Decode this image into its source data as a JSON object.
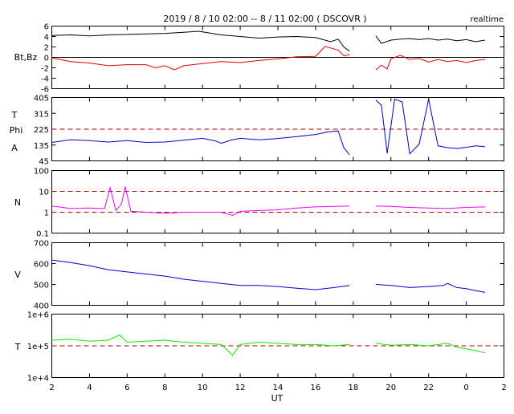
{
  "title": "2019 / 8 / 10   02:00 -- 8 / 11   02:00 ( DSCOVR )",
  "mode_label": "realtime",
  "xlabel": "UT",
  "x_tick_labels": [
    "2",
    "4",
    "6",
    "8",
    "10",
    "12",
    "14",
    "16",
    "18",
    "20",
    "22",
    "0",
    "2"
  ],
  "colors": {
    "bt": "#000000",
    "bz": "#dd0000",
    "phi": "#0000cc",
    "density": "#ee00ee",
    "speed": "#0000cc",
    "temperature": "#00ee00",
    "reference_dash": "#aa0000"
  },
  "chart_data": [
    {
      "type": "line",
      "panel": "magnetic-field",
      "ylabel": "Bt,Bz",
      "ylim": [
        -6,
        6
      ],
      "yticks": [
        "6",
        "4",
        "2",
        "0",
        "-2",
        "-4",
        "-6"
      ],
      "zero_line": 0,
      "series": [
        {
          "name": "Bt",
          "x": [
            2,
            3,
            4,
            5,
            6,
            7,
            8,
            9,
            9.8,
            10.5,
            11,
            12,
            13,
            14,
            15,
            16,
            16.4,
            16.8,
            17.2,
            17.5,
            17.8,
            19.2,
            19.5,
            20,
            20.5,
            21,
            21.5,
            22,
            22.5,
            23,
            23.5,
            24,
            24.5,
            25
          ],
          "y": [
            4.2,
            4.3,
            4.1,
            4.3,
            4.4,
            4.5,
            4.6,
            4.8,
            5.0,
            4.6,
            4.3,
            4.0,
            3.7,
            3.9,
            4.0,
            3.8,
            3.4,
            3.0,
            3.5,
            2.0,
            1.2,
            4.1,
            2.7,
            3.3,
            3.5,
            3.6,
            3.4,
            3.6,
            3.3,
            3.5,
            3.2,
            3.4,
            3.0,
            3.3
          ]
        },
        {
          "name": "Bz",
          "x": [
            2,
            3,
            4,
            5,
            6,
            7,
            7.5,
            8,
            8.5,
            9,
            10,
            10.5,
            11,
            12,
            13,
            14,
            15,
            16,
            16.2,
            16.5,
            16.8,
            17.2,
            17.5,
            17.8,
            19.2,
            19.5,
            19.8,
            20,
            20.5,
            21,
            21.5,
            22,
            22.5,
            23,
            23.5,
            24,
            24.5,
            25
          ],
          "y": [
            -0.1,
            -0.8,
            -1.1,
            -1.6,
            -1.4,
            -1.4,
            -2.0,
            -1.6,
            -2.4,
            -1.6,
            -1.2,
            -1.0,
            -0.8,
            -1.0,
            -0.6,
            -0.3,
            0.1,
            0.2,
            0.9,
            2.1,
            1.8,
            1.4,
            0.3,
            0.5,
            -2.4,
            -1.5,
            -2.2,
            -0.3,
            0.4,
            -0.4,
            -0.2,
            -0.9,
            -0.4,
            -0.8,
            -0.6,
            -1.0,
            -0.6,
            -0.4
          ]
        }
      ]
    },
    {
      "type": "line",
      "panel": "phi-angle",
      "ylabel": "T Phi A",
      "ylim": [
        45,
        405
      ],
      "yticks": [
        "405",
        "315",
        "225",
        "135",
        "45"
      ],
      "reference_lines": [
        225
      ],
      "series": [
        {
          "name": "Phi",
          "x": [
            2,
            3,
            4,
            5,
            6,
            7,
            8,
            9,
            10,
            10.7,
            11,
            11.5,
            12,
            13,
            14,
            15,
            16,
            16.7,
            17.2,
            17.5,
            17.8,
            19.2,
            19.5,
            19.8,
            20.2,
            20.6,
            21,
            21.5,
            22,
            22.5,
            23,
            23.5,
            24,
            24.5,
            25
          ],
          "y": [
            150,
            165,
            160,
            152,
            160,
            150,
            152,
            162,
            173,
            158,
            145,
            163,
            173,
            165,
            172,
            183,
            195,
            210,
            215,
            120,
            80,
            390,
            360,
            88,
            395,
            380,
            85,
            140,
            395,
            130,
            120,
            115,
            122,
            130,
            125
          ]
        }
      ]
    },
    {
      "type": "line",
      "panel": "density",
      "ylabel": "N",
      "yscale": "log",
      "ylim": [
        0.1,
        100
      ],
      "yticks": [
        "100",
        "10",
        "1",
        "0.1"
      ],
      "reference_lines": [
        10,
        1
      ],
      "series": [
        {
          "name": "N",
          "x": [
            2,
            3,
            4,
            4.8,
            5.1,
            5.4,
            5.7,
            5.9,
            6.2,
            7,
            8,
            9,
            10,
            11,
            11.6,
            12,
            13,
            14,
            15,
            16,
            17,
            17.8,
            19.2,
            20,
            21,
            22,
            23,
            24,
            25
          ],
          "y": [
            2.0,
            1.5,
            1.6,
            1.5,
            15,
            1.2,
            2.5,
            17,
            1.1,
            1.0,
            0.9,
            1.0,
            1.0,
            1.0,
            0.7,
            1.1,
            1.2,
            1.3,
            1.6,
            1.8,
            1.9,
            2.0,
            2.0,
            1.9,
            1.7,
            1.6,
            1.5,
            1.7,
            1.8
          ]
        }
      ]
    },
    {
      "type": "line",
      "panel": "speed",
      "ylabel": "V",
      "ylim": [
        400,
        700
      ],
      "yticks": [
        "700",
        "600",
        "500",
        "400"
      ],
      "series": [
        {
          "name": "V",
          "x": [
            2,
            3,
            4,
            5,
            6,
            7,
            8,
            9,
            10,
            11,
            12,
            13,
            14,
            15,
            16,
            17,
            17.8,
            19.2,
            20,
            21,
            22,
            22.8,
            23,
            23.5,
            24,
            24.5,
            25
          ],
          "y": [
            617,
            605,
            590,
            570,
            560,
            550,
            540,
            525,
            515,
            505,
            495,
            495,
            490,
            482,
            475,
            485,
            495,
            500,
            495,
            485,
            490,
            495,
            505,
            485,
            480,
            470,
            462
          ]
        }
      ]
    },
    {
      "type": "line",
      "panel": "temperature",
      "ylabel": "T",
      "yscale": "log",
      "ylim": [
        10000,
        1000000
      ],
      "yticks": [
        "1e+6",
        "1e+5",
        "1e+4"
      ],
      "reference_lines": [
        100000
      ],
      "series": [
        {
          "name": "T",
          "x": [
            2,
            3,
            4,
            5,
            5.6,
            6,
            7,
            8,
            9,
            10,
            11,
            11.6,
            12,
            13,
            14,
            15,
            16,
            17,
            17.8,
            19.2,
            20,
            21,
            22,
            23,
            23.5,
            24,
            24.5,
            25
          ],
          "y": [
            150000,
            160000,
            140000,
            150000,
            220000,
            130000,
            140000,
            150000,
            130000,
            120000,
            110000,
            50000,
            110000,
            130000,
            120000,
            110000,
            110000,
            100000,
            110000,
            120000,
            105000,
            110000,
            100000,
            120000,
            90000,
            80000,
            70000,
            60000
          ]
        }
      ]
    }
  ]
}
